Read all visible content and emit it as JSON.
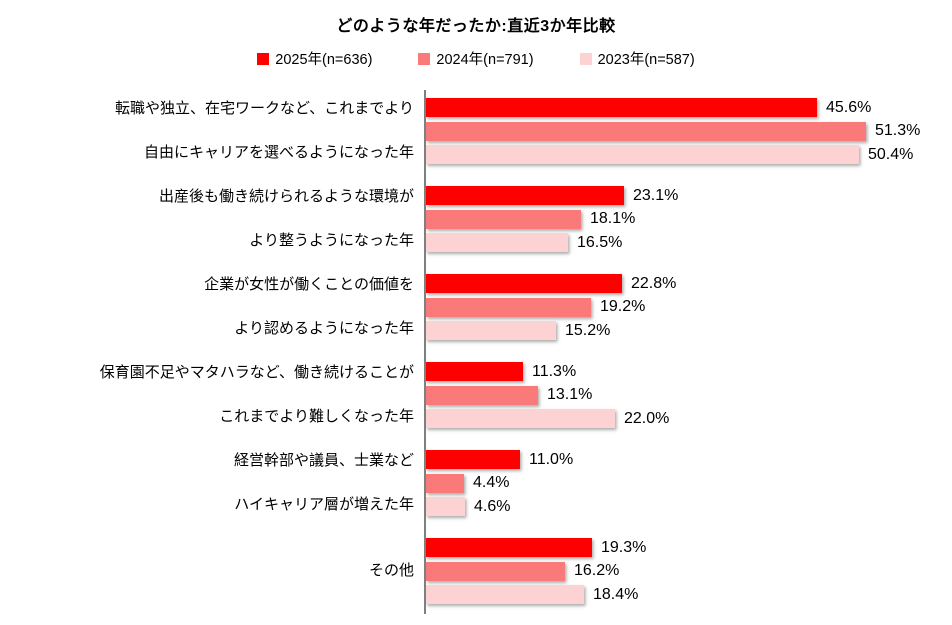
{
  "chart_data": {
    "type": "bar",
    "orientation": "horizontal",
    "title": "どのような年だったか:直近3か年比較",
    "categories": [
      [
        "転職や独立、在宅ワークなど、これまでより",
        "自由にキャリアを選べるようになった年"
      ],
      [
        "出産後も働き続けられるような環境が",
        "より整うようになった年"
      ],
      [
        "企業が女性が働くことの価値を",
        "より認めるようになった年"
      ],
      [
        "保育園不足やマタハラなど、働き続けることが",
        "これまでより難しくなった年"
      ],
      [
        "経営幹部や議員、士業など",
        "ハイキャリア層が増えた年"
      ],
      [
        "その他"
      ]
    ],
    "series": [
      {
        "name": "2025年(n=636)",
        "color": "#ff0000",
        "values": [
          45.6,
          23.1,
          22.8,
          11.3,
          11.0,
          19.3
        ]
      },
      {
        "name": "2024年(n=791)",
        "color": "#fa7a7a",
        "values": [
          51.3,
          18.1,
          19.2,
          13.1,
          4.4,
          16.2
        ]
      },
      {
        "name": "2023年(n=587)",
        "color": "#fcd2d2",
        "values": [
          50.4,
          16.5,
          15.2,
          22.0,
          4.6,
          18.4
        ]
      }
    ],
    "value_suffix": "%",
    "xlim": [
      0,
      60
    ],
    "axis_color": "#7f7f7f",
    "legend_position": "top",
    "grid": false
  }
}
